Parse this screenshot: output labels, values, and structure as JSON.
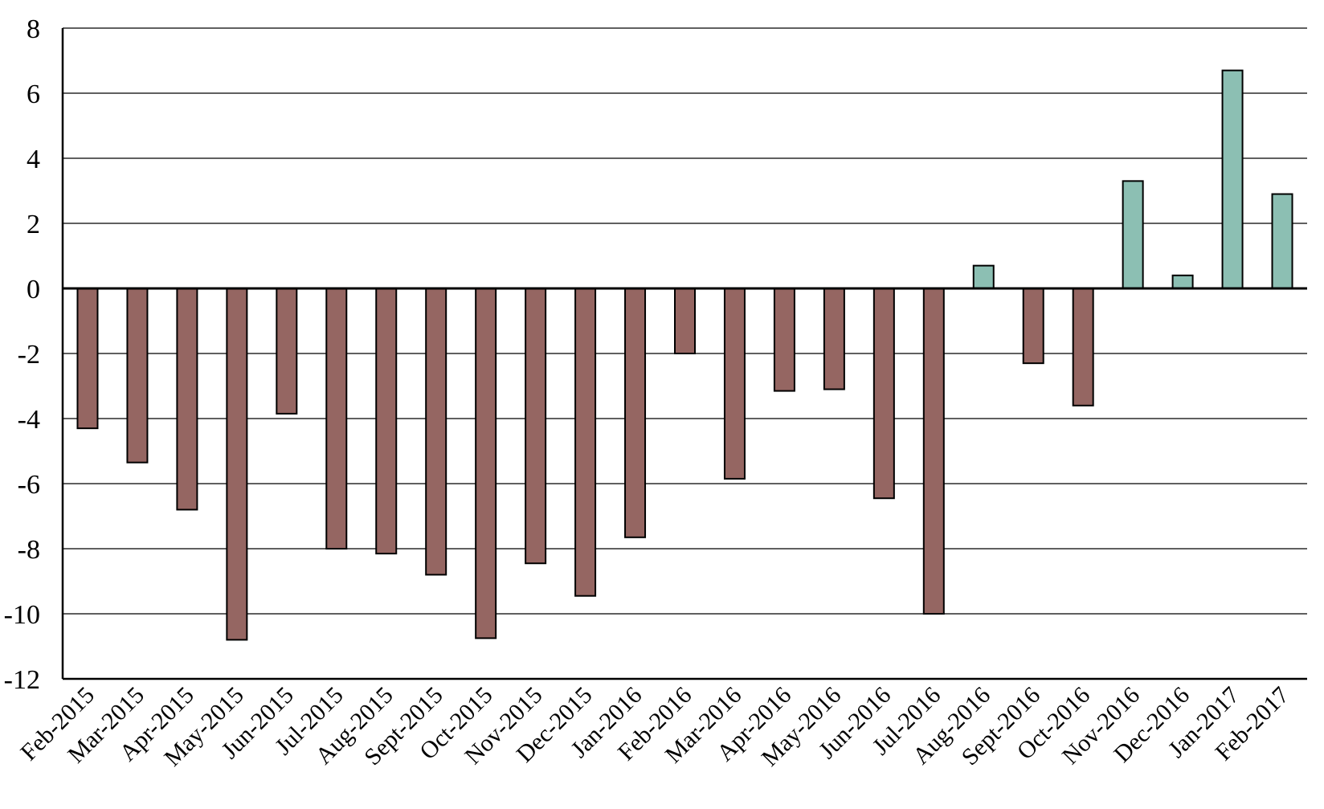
{
  "chart_data": {
    "type": "bar",
    "title": "",
    "xlabel": "",
    "ylabel": "",
    "ylim": [
      -12,
      8
    ],
    "yticks": [
      8,
      6,
      4,
      2,
      0,
      -2,
      -4,
      -6,
      -8,
      -10,
      -12
    ],
    "grid": true,
    "legend": "none",
    "categories": [
      "Feb-2015",
      "Mar-2015",
      "Apr-2015",
      "May-2015",
      "Jun-2015",
      "Jul-2015",
      "Aug-2015",
      "Sept-2015",
      "Oct-2015",
      "Nov-2015",
      "Dec-2015",
      "Jan-2016",
      "Feb-2016",
      "Mar-2016",
      "Apr-2016",
      "May-2016",
      "Jun-2016",
      "Jul-2016",
      "Aug-2016",
      "Sept-2016",
      "Oct-2016",
      "Nov-2016",
      "Dec-2016",
      "Jan-2017",
      "Feb-2017"
    ],
    "values": [
      -4.3,
      -5.35,
      -6.8,
      -10.8,
      -3.85,
      -8.0,
      -8.15,
      -8.8,
      -10.75,
      -8.45,
      -9.45,
      -7.65,
      -2.0,
      -5.85,
      -3.15,
      -3.1,
      -6.45,
      -10.0,
      0.7,
      -2.3,
      -3.6,
      3.3,
      0.4,
      6.7,
      2.9
    ],
    "colors": {
      "negative": "#956662",
      "positive": "#8cbfb3"
    }
  }
}
